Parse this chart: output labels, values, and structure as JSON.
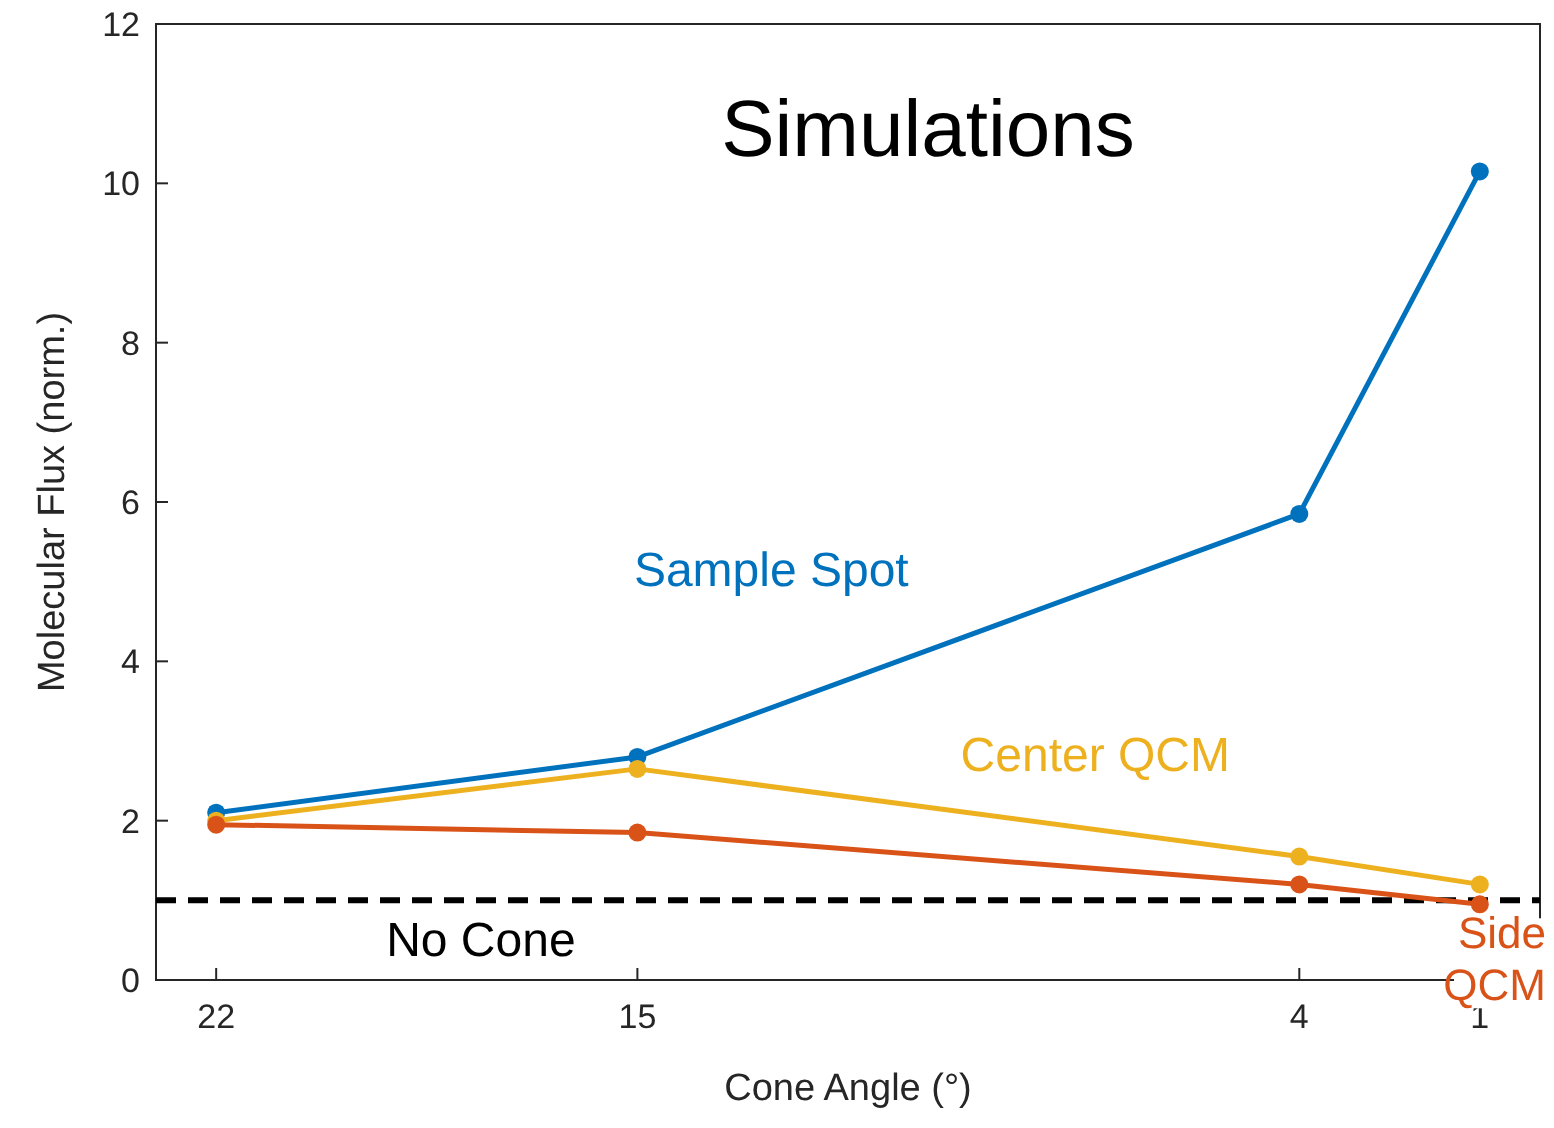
{
  "chart_data": {
    "type": "line",
    "title": "Simulations",
    "xlabel": "Cone Angle (°)",
    "ylabel": "Molecular Flux (norm.)",
    "x": [
      22,
      15,
      4,
      1
    ],
    "series": [
      {
        "name": "Sample Spot",
        "color": "#0072bd",
        "values": [
          2.1,
          2.8,
          5.85,
          10.15
        ]
      },
      {
        "name": "Center QCM",
        "color": "#edb120",
        "values": [
          2.0,
          2.65,
          1.55,
          1.2
        ]
      },
      {
        "name": "Side QCM",
        "color": "#d95319",
        "values": [
          1.95,
          1.85,
          1.2,
          0.95
        ]
      }
    ],
    "xlim": [
      23,
      0
    ],
    "xticks": [
      22,
      15,
      4,
      1
    ],
    "ylim": [
      0,
      12
    ],
    "yticks": [
      0,
      2,
      4,
      6,
      8,
      10,
      12
    ],
    "ref_lines": [
      {
        "axis": "y",
        "value": 1,
        "label": "No Cone",
        "color": "#000000",
        "line_style": "dashed"
      }
    ],
    "marker": "circle",
    "line_style": "solid",
    "grid": false
  }
}
